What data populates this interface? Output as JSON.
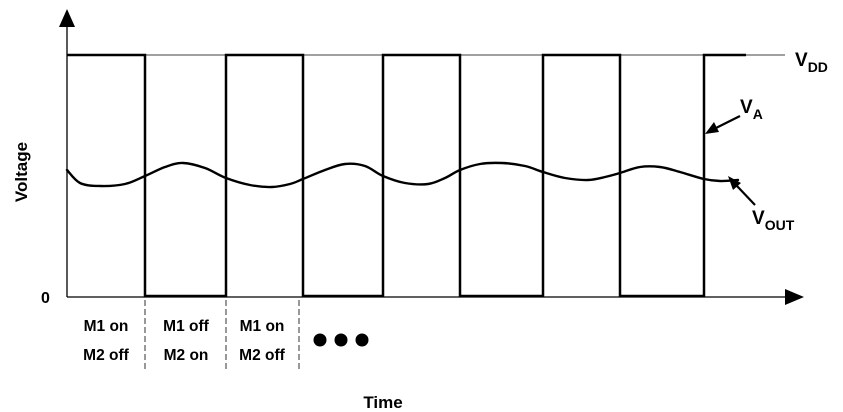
{
  "diagram": {
    "y_axis_label": "Voltage",
    "x_axis_label": "Time",
    "zero_label": "0",
    "signals": {
      "vdd": {
        "main": "V",
        "sub": "DD"
      },
      "va": {
        "main": "V",
        "sub": "A"
      },
      "vout": {
        "main": "V",
        "sub": "OUT"
      }
    },
    "phases": [
      {
        "line1": "M1 on",
        "line2": "M2 off"
      },
      {
        "line1": "M1 off",
        "line2": "M2 on"
      },
      {
        "line1": "M1 on",
        "line2": "M2 off"
      }
    ],
    "continuation": "dots",
    "colors": {
      "ink": "#000000",
      "background": "#ffffff"
    }
  }
}
